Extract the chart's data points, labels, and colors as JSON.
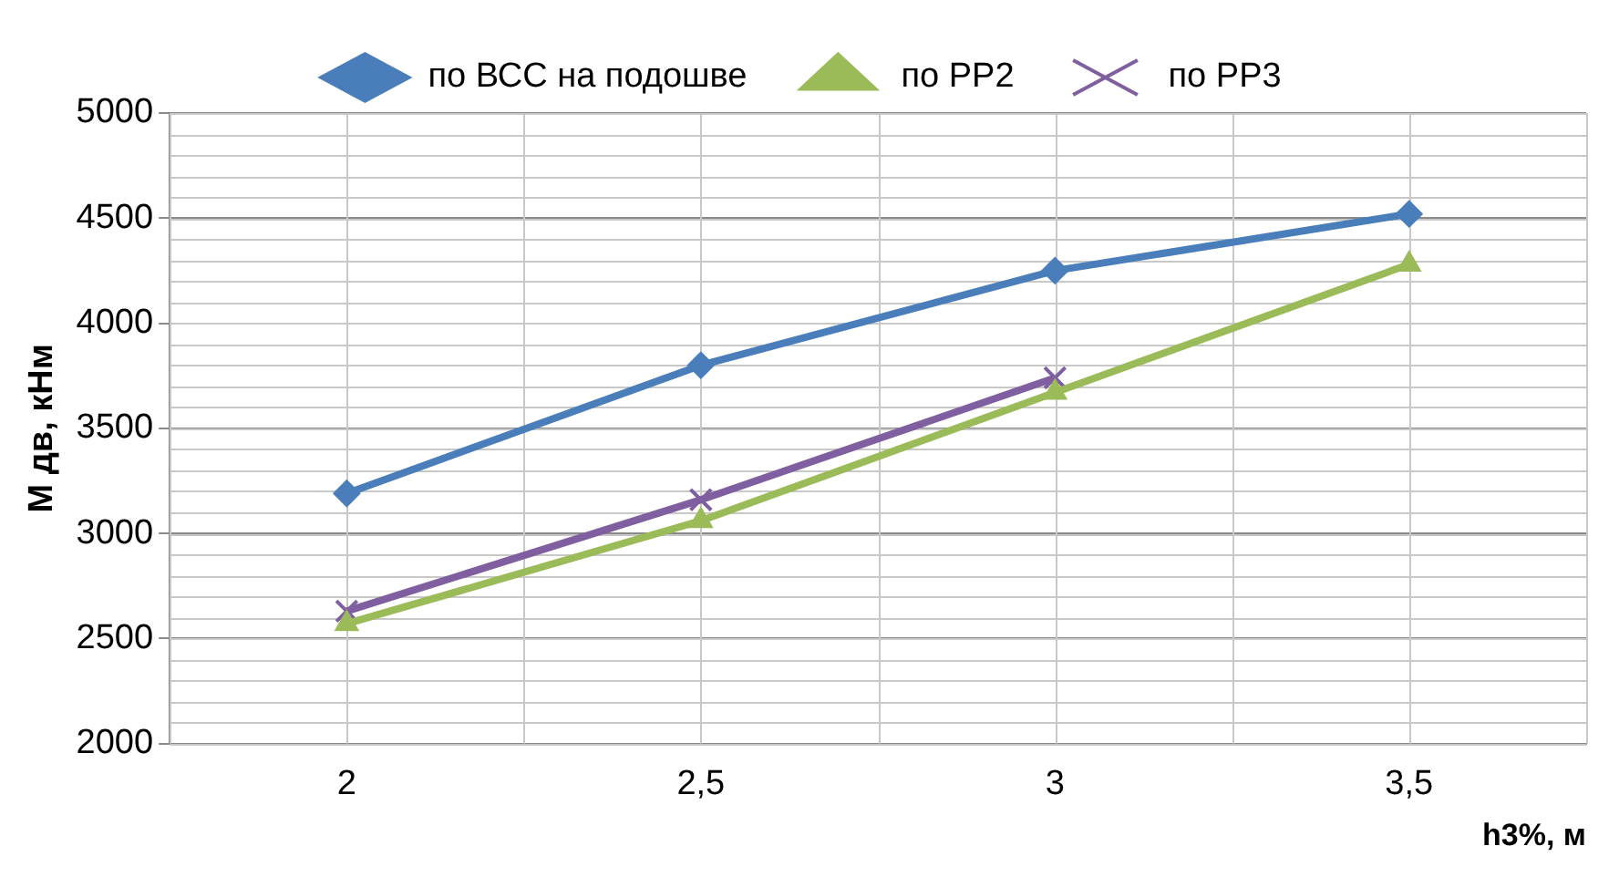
{
  "chart_data": {
    "type": "line",
    "xlabel": "h3%, м",
    "ylabel": "М дв, кНм",
    "categories": [
      "2",
      "2,5",
      "3",
      "3,5"
    ],
    "series": [
      {
        "name": "по ВСС на подошве",
        "color": "#4a7ebb",
        "marker": "diamond",
        "values": [
          3190,
          3800,
          4250,
          4520
        ]
      },
      {
        "name": "по РР2",
        "color": "#9bbb59",
        "marker": "triangle",
        "values": [
          2570,
          3060,
          3670,
          4280
        ]
      },
      {
        "name": "по РР3",
        "color": "#7f5fa0",
        "marker": "cross",
        "values": [
          2630,
          3160,
          3740,
          null
        ]
      }
    ],
    "ylim": [
      2000,
      5000
    ],
    "yticks": [
      2000,
      2500,
      3000,
      3500,
      4000,
      4500,
      5000
    ],
    "grid": true,
    "legend": "top",
    "line_style": "solid"
  }
}
